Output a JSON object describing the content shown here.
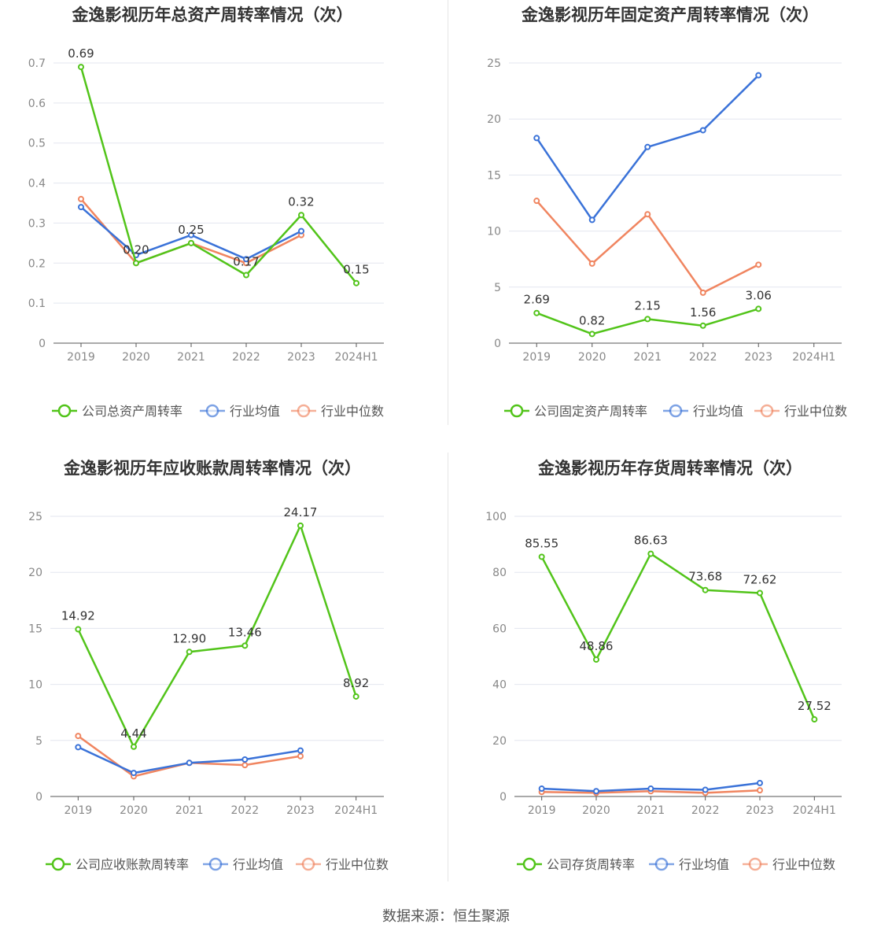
{
  "colors": {
    "company": "#52c41a",
    "avg": "#3a72d8",
    "median": "#f08560",
    "grid": "#e3e6ef",
    "axis": "#666666",
    "text": "#333333"
  },
  "source": "数据来源：恒生聚源",
  "chart_data": [
    {
      "type": "line",
      "title": "金逸影视历年总资产周转率情况（次）",
      "categories": [
        "2019",
        "2020",
        "2021",
        "2022",
        "2023",
        "2024H1"
      ],
      "ylim": [
        0,
        0.7
      ],
      "yticks": [
        "0",
        "0.1",
        "0.2",
        "0.3",
        "0.4",
        "0.5",
        "0.6",
        "0.7"
      ],
      "grid": true,
      "legend_position": "bottom",
      "series": [
        {
          "name": "公司总资产周转率",
          "values": [
            0.69,
            0.2,
            0.25,
            0.17,
            0.32,
            0.15
          ],
          "labels": [
            "0.69",
            "0.20",
            "0.25",
            "0.17",
            "0.32",
            "0.15"
          ],
          "role": "company"
        },
        {
          "name": "行业均值",
          "values": [
            0.34,
            0.22,
            0.27,
            0.21,
            0.28,
            null
          ],
          "role": "avg"
        },
        {
          "name": "行业中位数",
          "values": [
            0.36,
            0.2,
            0.25,
            0.2,
            0.27,
            null
          ],
          "role": "median"
        }
      ]
    },
    {
      "type": "line",
      "title": "金逸影视历年固定资产周转率情况（次）",
      "categories": [
        "2019",
        "2020",
        "2021",
        "2022",
        "2023",
        "2024H1"
      ],
      "ylim": [
        0,
        25
      ],
      "yticks": [
        "0",
        "5",
        "10",
        "15",
        "20",
        "25"
      ],
      "grid": true,
      "legend_position": "bottom",
      "series": [
        {
          "name": "公司固定资产周转率",
          "values": [
            2.69,
            0.82,
            2.15,
            1.56,
            3.06,
            null
          ],
          "labels": [
            "2.69",
            "0.82",
            "2.15",
            "1.56",
            "3.06",
            ""
          ],
          "role": "company"
        },
        {
          "name": "行业均值",
          "values": [
            18.3,
            11.0,
            17.5,
            19.0,
            23.9,
            null
          ],
          "role": "avg"
        },
        {
          "name": "行业中位数",
          "values": [
            12.7,
            7.1,
            11.5,
            4.5,
            7.0,
            null
          ],
          "role": "median"
        }
      ]
    },
    {
      "type": "line",
      "title": "金逸影视历年应收账款周转率情况（次）",
      "categories": [
        "2019",
        "2020",
        "2021",
        "2022",
        "2023",
        "2024H1"
      ],
      "ylim": [
        0,
        25
      ],
      "yticks": [
        "0",
        "5",
        "10",
        "15",
        "20",
        "25"
      ],
      "grid": true,
      "legend_position": "bottom",
      "series": [
        {
          "name": "公司应收账款周转率",
          "values": [
            14.92,
            4.44,
            12.9,
            13.46,
            24.17,
            8.92
          ],
          "labels": [
            "14.92",
            "4.44",
            "12.90",
            "13.46",
            "24.17",
            "8.92"
          ],
          "role": "company"
        },
        {
          "name": "行业均值",
          "values": [
            4.4,
            2.1,
            3.0,
            3.3,
            4.1,
            null
          ],
          "role": "avg"
        },
        {
          "name": "行业中位数",
          "values": [
            5.4,
            1.8,
            3.0,
            2.8,
            3.6,
            null
          ],
          "role": "median"
        }
      ]
    },
    {
      "type": "line",
      "title": "金逸影视历年存货周转率情况（次）",
      "categories": [
        "2019",
        "2020",
        "2021",
        "2022",
        "2023",
        "2024H1"
      ],
      "ylim": [
        0,
        100
      ],
      "yticks": [
        "0",
        "20",
        "40",
        "60",
        "80",
        "100"
      ],
      "grid": true,
      "legend_position": "bottom",
      "series": [
        {
          "name": "公司存货周转率",
          "values": [
            85.55,
            48.86,
            86.63,
            73.68,
            72.62,
            27.52
          ],
          "labels": [
            "85.55",
            "48.86",
            "86.63",
            "73.68",
            "72.62",
            "27.52"
          ],
          "role": "company"
        },
        {
          "name": "行业均值",
          "values": [
            2.8,
            1.9,
            2.8,
            2.4,
            4.8,
            null
          ],
          "role": "avg"
        },
        {
          "name": "行业中位数",
          "values": [
            1.6,
            1.3,
            1.9,
            1.3,
            2.2,
            null
          ],
          "role": "median"
        }
      ]
    }
  ]
}
